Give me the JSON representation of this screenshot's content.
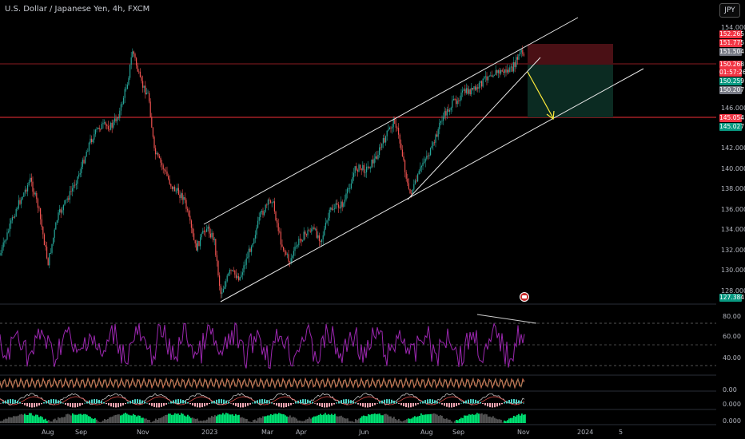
{
  "header": {
    "title": "U.S. Dollar / Japanese Yen, 4h, FXCM",
    "currency_button": "JPY"
  },
  "price_axis": {
    "ticks": [
      "154.000",
      "146.000",
      "142.000",
      "140.000",
      "138.000",
      "136.000",
      "134.000",
      "132.000",
      "130.000",
      "128.000"
    ],
    "tags": [
      {
        "label": "152.265",
        "color": "#f23645"
      },
      {
        "label": "151.775",
        "color": "#f23645"
      },
      {
        "label": "151.504",
        "color": "#787b86"
      },
      {
        "label": "150.268",
        "color": "#f23645"
      },
      {
        "label": "01:57:26",
        "color": "#f23645"
      },
      {
        "label": "150.259",
        "color": "#089981"
      },
      {
        "label": "150.207",
        "color": "#787b86"
      },
      {
        "label": "145.054",
        "color": "#f23645"
      },
      {
        "label": "145.027",
        "color": "#089981"
      },
      {
        "label": "127.384",
        "color": "#089981"
      }
    ]
  },
  "rsi_axis": {
    "ticks": [
      "80.00",
      "60.00",
      "40.00"
    ]
  },
  "indicator_axis": {
    "ticks": [
      "0.00",
      "0.000",
      "0.000"
    ]
  },
  "time_axis": {
    "labels": [
      "Aug",
      "Sep",
      "Nov",
      "2023",
      "Mar",
      "Apr",
      "Jun",
      "Aug",
      "Sep",
      "Nov",
      "2024",
      "5"
    ]
  },
  "colors": {
    "up": "#26a69a",
    "down": "#ef5350",
    "rsi": "#9c27b0",
    "trendline": "#e6e6e6",
    "target_arrow": "#ffeb3b",
    "stop_zone": "#4a1015",
    "profit_zone": "#0b2b22"
  }
}
